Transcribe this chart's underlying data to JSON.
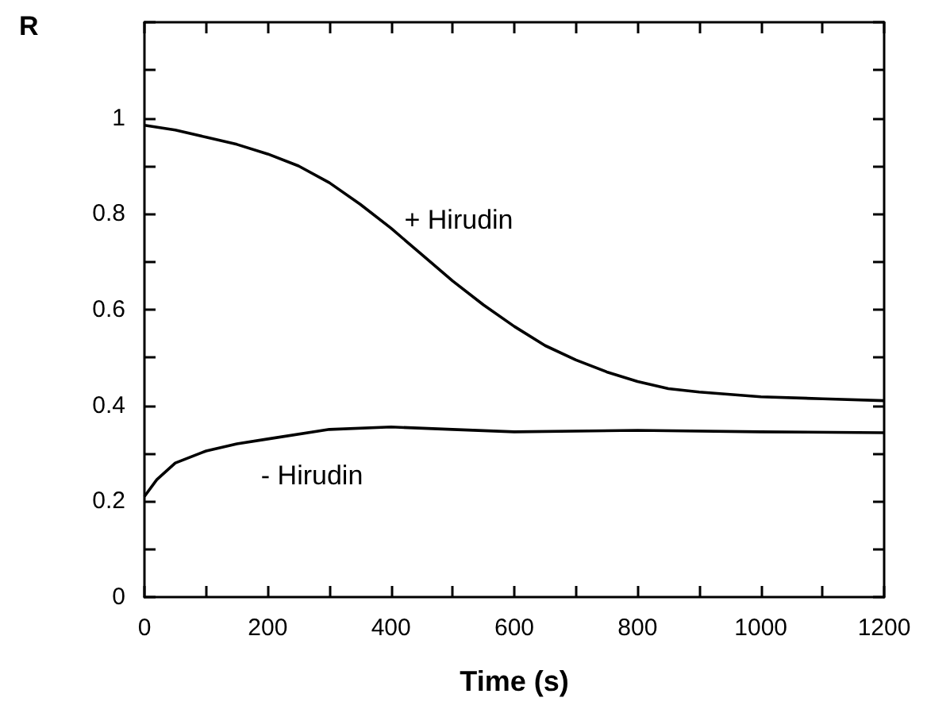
{
  "chart_data": {
    "type": "line",
    "xlabel": "Time (s)",
    "ylabel": "R",
    "xlim": [
      0,
      1200
    ],
    "xticks": [
      0,
      {
        "value": 100,
        "label": null
      },
      200,
      {
        "value": 300,
        "label": null
      },
      400,
      {
        "value": 500,
        "label": null
      },
      600,
      {
        "value": 700,
        "label": null
      },
      800,
      {
        "value": 900,
        "label": null
      },
      1000,
      {
        "value": 1100,
        "label": null
      },
      1200
    ],
    "ylim": [
      0,
      1.2
    ],
    "yticks": [
      0,
      {
        "value": 0.1,
        "label": null
      },
      0.2,
      {
        "value": 0.3,
        "label": null
      },
      0.4,
      {
        "value": 0.5,
        "label": null
      },
      0.6,
      {
        "value": 0.7,
        "label": null
      },
      0.8,
      {
        "value": 0.9,
        "label": null
      },
      1,
      {
        "value": 1.1,
        "label": null
      },
      {
        "value": 1.2,
        "label": null
      }
    ],
    "grid": false,
    "legend": false,
    "marker": "none",
    "line_style": "solid",
    "x": [
      0,
      50,
      100,
      150,
      200,
      250,
      300,
      350,
      400,
      450,
      500,
      550,
      600,
      650,
      700,
      750,
      800,
      850,
      900,
      1000,
      1100,
      1200
    ],
    "series": [
      {
        "name": "+ Hirudin",
        "color": "#000000",
        "values": [
          0.985,
          0.975,
          0.96,
          0.945,
          0.925,
          0.9,
          0.865,
          0.82,
          0.77,
          0.715,
          0.66,
          0.61,
          0.565,
          0.525,
          0.495,
          0.47,
          0.45,
          0.435,
          0.428,
          0.418,
          0.414,
          0.41
        ]
      },
      {
        "name": "- Hirudin",
        "color": "#000000",
        "x": [
          0,
          20,
          50,
          100,
          150,
          200,
          300,
          400,
          500,
          600,
          800,
          1000,
          1200
        ],
        "values": [
          0.21,
          0.245,
          0.28,
          0.305,
          0.32,
          0.33,
          0.35,
          0.355,
          0.35,
          0.345,
          0.348,
          0.345,
          0.343
        ]
      }
    ]
  }
}
